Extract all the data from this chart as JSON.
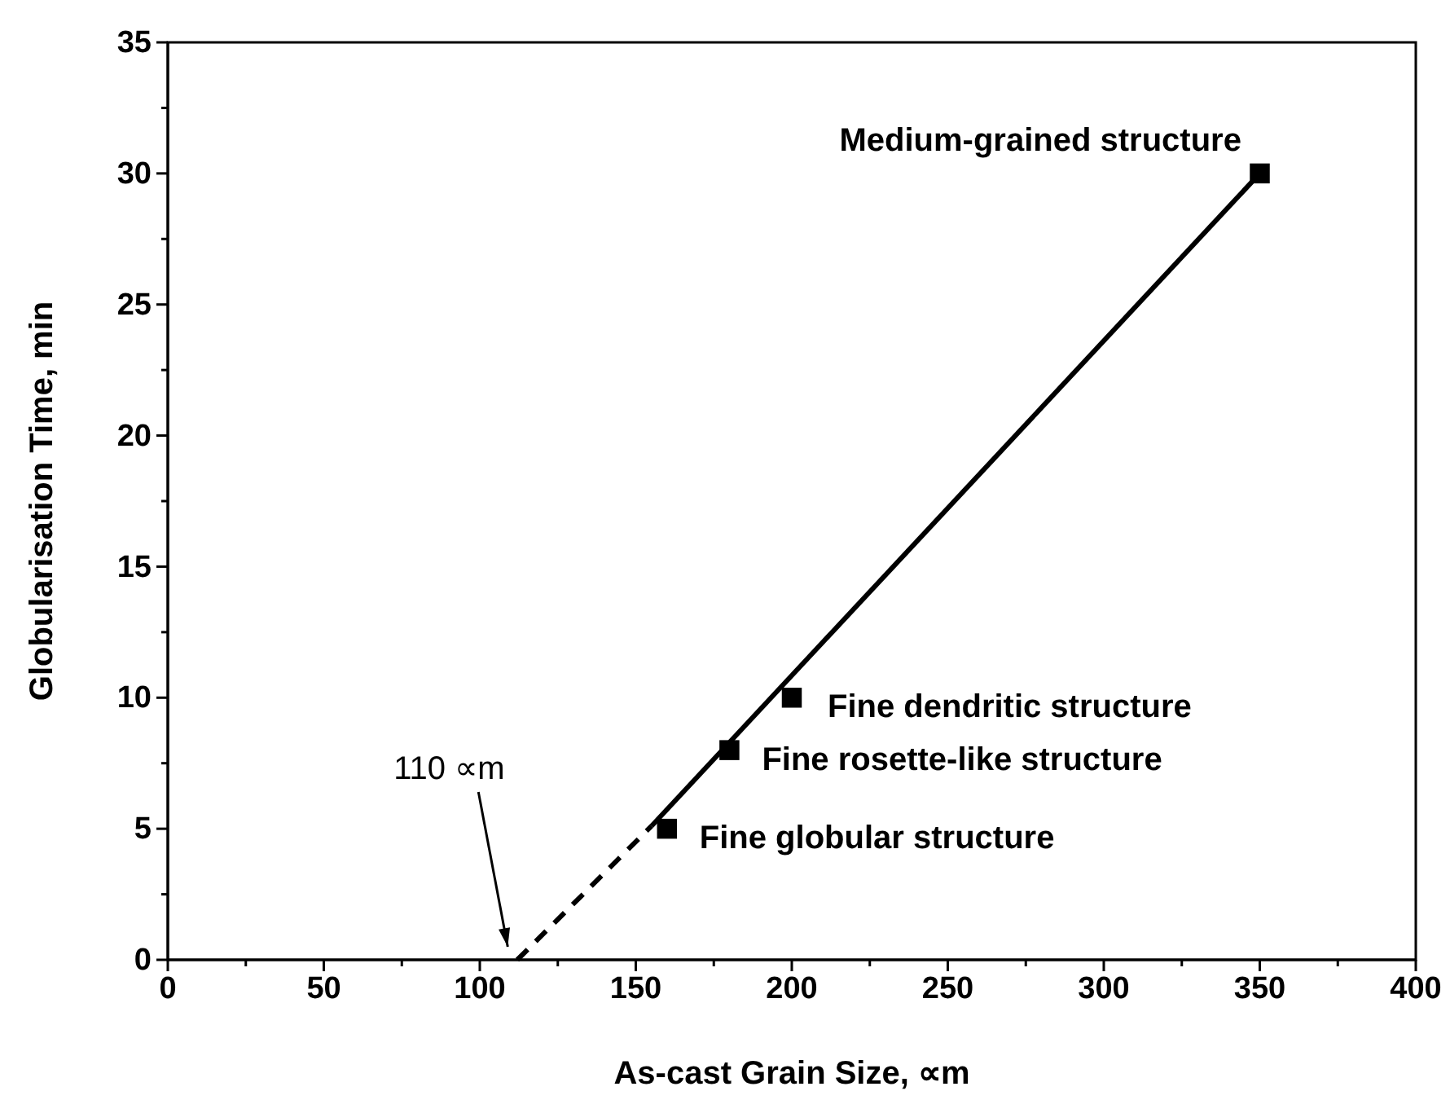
{
  "chart_data": {
    "type": "scatter",
    "xlabel": "As-cast Grain Size, ∝m",
    "ylabel": "Globularisation Time, min",
    "xlim": [
      0,
      400
    ],
    "ylim": [
      0,
      35
    ],
    "xticks": [
      0,
      {
        "value": 25,
        "label": null
      },
      50,
      {
        "value": 75,
        "label": null
      },
      100,
      {
        "value": 125,
        "label": null
      },
      150,
      {
        "value": 175,
        "label": null
      },
      200,
      {
        "value": 225,
        "label": null
      },
      250,
      {
        "value": 275,
        "label": null
      },
      300,
      {
        "value": 325,
        "label": null
      },
      350,
      {
        "value": 375,
        "label": null
      },
      400
    ],
    "yticks": [
      0,
      {
        "value": 2.5,
        "label": null
      },
      5,
      {
        "value": 7.5,
        "label": null
      },
      10,
      {
        "value": 12.5,
        "label": null
      },
      15,
      {
        "value": 17.5,
        "label": null
      },
      20,
      {
        "value": 22.5,
        "label": null
      },
      25,
      {
        "value": 27.5,
        "label": null
      },
      30,
      {
        "value": 32.5,
        "label": null
      },
      35
    ],
    "grid": false,
    "series": [
      {
        "type": "line",
        "color": "#000000",
        "x": [
          155,
          350
        ],
        "values": [
          5.1,
          30
        ],
        "line_style": "solid",
        "marker": "none"
      },
      {
        "type": "line",
        "color": "#000000",
        "x": [
          112,
          155
        ],
        "values": [
          0,
          5.1
        ],
        "line_style": "dashed",
        "marker": "none"
      },
      {
        "color": "#000000",
        "x": [
          160,
          180,
          200,
          350
        ],
        "values": [
          5,
          8,
          10,
          30
        ],
        "marker": "square"
      }
    ],
    "annotations": [
      {
        "text": "Medium-grained structure",
        "x": 350,
        "y": 30
      },
      {
        "text": "Fine dendritic structure",
        "x": 200,
        "y": 10
      },
      {
        "text": "Fine rosette-like structure",
        "x": 180,
        "y": 8
      },
      {
        "text": "Fine globular structure",
        "x": 160,
        "y": 5
      },
      {
        "text": "110 ∝m",
        "x": 110,
        "y": 0
      }
    ]
  }
}
